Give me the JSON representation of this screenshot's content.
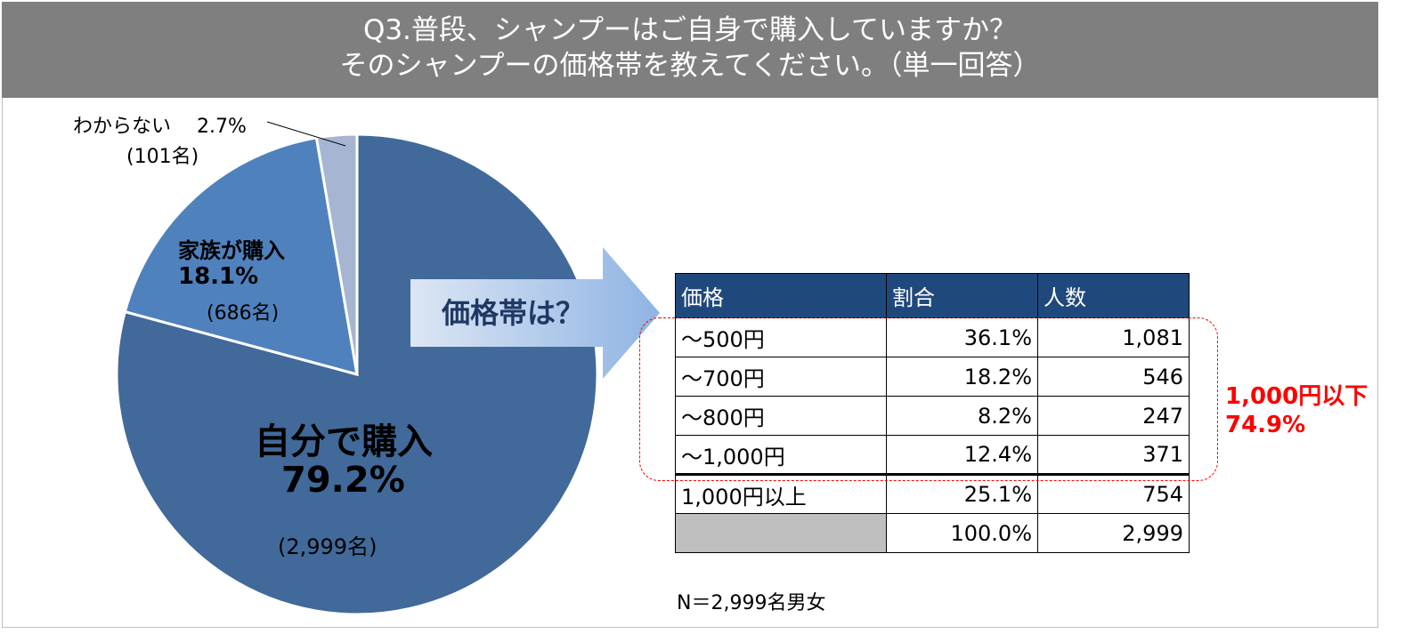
{
  "header": {
    "line1": "Q3.普段、シャンプーはご自身で購入していますか？",
    "line2": "そのシャンプーの価格帯を教えてください。（単一回答）"
  },
  "chart_data": {
    "type": "pie",
    "slices": [
      {
        "label": "自分で購入",
        "percent_label": "79.2%",
        "count_label": "(2,999名)",
        "value": 79.2,
        "color": "#41699a"
      },
      {
        "label": "家族が購入",
        "percent_label": "18.1%",
        "count_label": "(686名)",
        "value": 18.1,
        "color": "#4f81bd"
      },
      {
        "label": "わからない",
        "percent_label": "2.7%",
        "count_label": "(101名)",
        "value": 2.7,
        "color": "#a6b5d2"
      }
    ]
  },
  "arrow_label": "価格帯は？",
  "table": {
    "headers": [
      "価格",
      "割合",
      "人数"
    ],
    "rows": [
      {
        "price": "～500円",
        "ratio": "36.1%",
        "count": "1,081"
      },
      {
        "price": "～700円",
        "ratio": "18.2%",
        "count": "546"
      },
      {
        "price": "～800円",
        "ratio": "8.2%",
        "count": "247"
      },
      {
        "price": "～1,000円",
        "ratio": "12.4%",
        "count": "371"
      },
      {
        "price": "1,000円以上",
        "ratio": "25.1%",
        "count": "754"
      }
    ],
    "total": {
      "ratio": "100.0%",
      "count": "2,999"
    }
  },
  "highlight": {
    "line1": "1,000円以下",
    "line2": "74.9%",
    "color": "#ff0000"
  },
  "note": "N＝2,999名男女"
}
